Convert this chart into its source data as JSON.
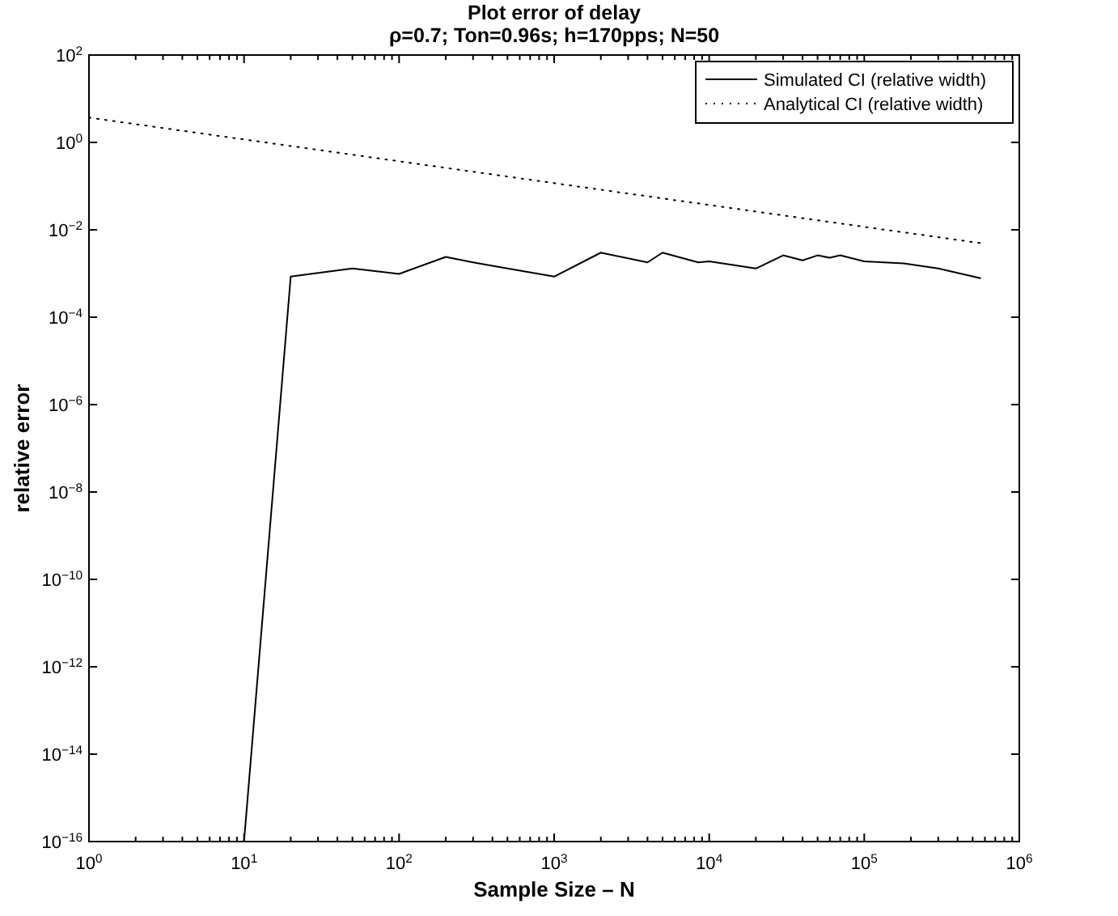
{
  "chart_data": {
    "type": "line",
    "title": "Plot error of delay",
    "subtitle": "ρ=0.7; Ton=0.96s; h=170pps; N=50",
    "xlabel": "Sample Size – N",
    "ylabel": "relative error",
    "log": "xy",
    "grid": false,
    "legend": "top right",
    "xlim": [
      1,
      1000000
    ],
    "ylim": [
      1e-16,
      100
    ],
    "xticks": [
      {
        "value": 1,
        "label": "10$^{0}$"
      },
      {
        "value": 2,
        "label": null
      },
      {
        "value": 3,
        "label": null
      },
      {
        "value": 4,
        "label": null
      },
      {
        "value": 5,
        "label": null
      },
      {
        "value": 6,
        "label": null
      },
      {
        "value": 7,
        "label": null
      },
      {
        "value": 8,
        "label": null
      },
      {
        "value": 9,
        "label": null
      },
      {
        "value": 10,
        "label": "10$^{1}$"
      },
      {
        "value": 20,
        "label": null
      },
      {
        "value": 30,
        "label": null
      },
      {
        "value": 40,
        "label": null
      },
      {
        "value": 50,
        "label": null
      },
      {
        "value": 60,
        "label": null
      },
      {
        "value": 70,
        "label": null
      },
      {
        "value": 80,
        "label": null
      },
      {
        "value": 90,
        "label": null
      },
      {
        "value": 100,
        "label": "10$^{2}$"
      },
      {
        "value": 200,
        "label": null
      },
      {
        "value": 300,
        "label": null
      },
      {
        "value": 400,
        "label": null
      },
      {
        "value": 500,
        "label": null
      },
      {
        "value": 600,
        "label": null
      },
      {
        "value": 700,
        "label": null
      },
      {
        "value": 800,
        "label": null
      },
      {
        "value": 900,
        "label": null
      },
      {
        "value": 1000,
        "label": "10$^{3}$"
      },
      {
        "value": 2000,
        "label": null
      },
      {
        "value": 3000,
        "label": null
      },
      {
        "value": 4000,
        "label": null
      },
      {
        "value": 5000,
        "label": null
      },
      {
        "value": 6000,
        "label": null
      },
      {
        "value": 7000,
        "label": null
      },
      {
        "value": 8000,
        "label": null
      },
      {
        "value": 9000,
        "label": null
      },
      {
        "value": 10000,
        "label": "10$^{4}$"
      },
      {
        "value": 20000,
        "label": null
      },
      {
        "value": 30000,
        "label": null
      },
      {
        "value": 40000,
        "label": null
      },
      {
        "value": 50000,
        "label": null
      },
      {
        "value": 60000,
        "label": null
      },
      {
        "value": 70000,
        "label": null
      },
      {
        "value": 80000,
        "label": null
      },
      {
        "value": 90000,
        "label": null
      },
      {
        "value": 100000,
        "label": "10$^{5}$"
      },
      {
        "value": 200000,
        "label": null
      },
      {
        "value": 300000,
        "label": null
      },
      {
        "value": 400000,
        "label": null
      },
      {
        "value": 500000,
        "label": null
      },
      {
        "value": 600000,
        "label": null
      },
      {
        "value": 700000,
        "label": null
      },
      {
        "value": 800000,
        "label": null
      },
      {
        "value": 900000,
        "label": null
      },
      {
        "value": 1000000,
        "label": "10$^{6}$"
      }
    ],
    "yticks": [
      {
        "value": 1e-16,
        "label": "10$^{−16}$"
      },
      {
        "value": 1e-14,
        "label": "10$^{−14}$"
      },
      {
        "value": 1e-12,
        "label": "10$^{−12}$"
      },
      {
        "value": 1e-10,
        "label": "10$^{−10}$"
      },
      {
        "value": 1e-08,
        "label": "10$^{−8}$"
      },
      {
        "value": 1e-06,
        "label": "10$^{−6}$"
      },
      {
        "value": 0.0001,
        "label": "10$^{−4}$"
      },
      {
        "value": 0.01,
        "label": "10$^{−2}$"
      },
      {
        "value": 1,
        "label": "10$^{0}$"
      },
      {
        "value": 100,
        "label": "10$^{2}$"
      }
    ],
    "series": [
      {
        "name": "Simulated CI (relative width)",
        "color": "#000000",
        "line_style": "solid",
        "x": [
          10,
          20,
          50,
          100,
          200,
          300,
          500,
          1000,
          2000,
          4000,
          5000,
          8500,
          10000,
          20000,
          30000,
          40000,
          50000,
          60000,
          70000,
          100000,
          180000,
          300000,
          560000
        ],
        "values": [
          1e-16,
          0.00085,
          0.0013,
          0.00098,
          0.0024,
          0.0018,
          0.0013,
          0.00085,
          0.003,
          0.0018,
          0.003,
          0.0018,
          0.0019,
          0.0013,
          0.0026,
          0.002,
          0.0026,
          0.0023,
          0.0026,
          0.0019,
          0.0017,
          0.0013,
          0.00078
        ]
      },
      {
        "name": "Analytical CI (relative width)",
        "color": "#000000",
        "line_style": "dotted",
        "x": [
          1,
          10,
          100,
          1000,
          10000,
          100000,
          600000
        ],
        "values": [
          3.7,
          1.17,
          0.37,
          0.117,
          0.037,
          0.0117,
          0.0048
        ]
      }
    ]
  }
}
